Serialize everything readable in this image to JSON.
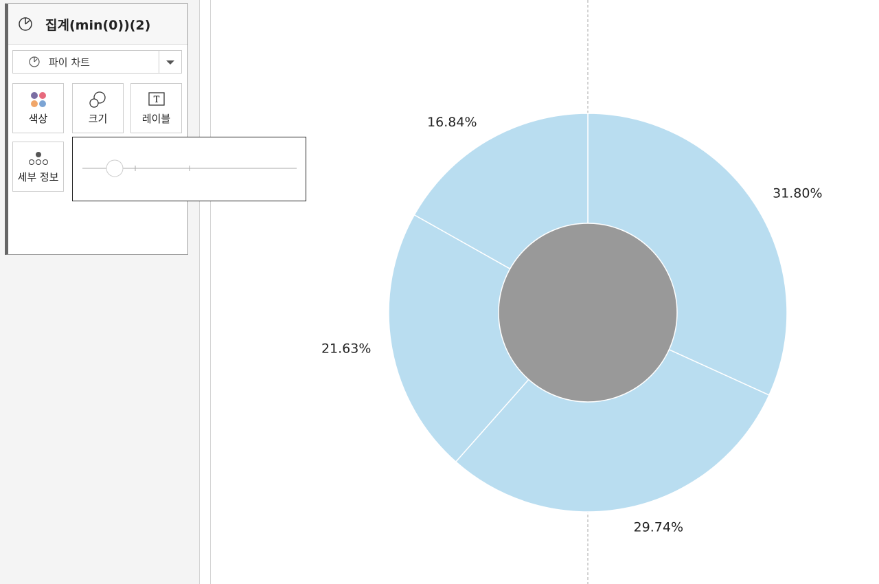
{
  "marks_card": {
    "title": "집계(min(0))(2)",
    "mark_type": "파이 차트",
    "buttons": [
      "색상",
      "크기",
      "레이블",
      "세부 정보"
    ]
  },
  "chart_data": {
    "type": "pie",
    "values": [
      31.8,
      29.74,
      21.63,
      16.84
    ],
    "value_labels": [
      "31.80%",
      "29.74%",
      "21.63%",
      "16.84%"
    ],
    "color": "#b9ddf0",
    "hole_color": "#999999"
  }
}
